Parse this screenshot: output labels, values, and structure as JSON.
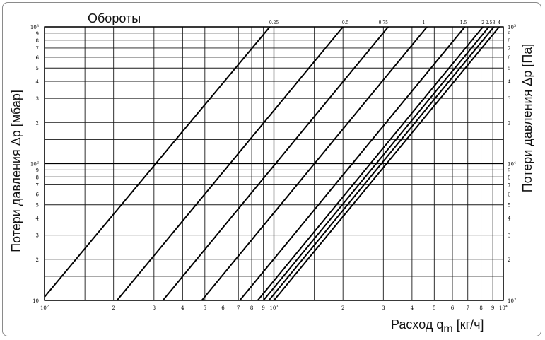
{
  "chart_data": {
    "type": "line",
    "scale": "log-log",
    "title": "Обороты",
    "xlabel_main": "Расход q",
    "xlabel_sub": "m",
    "xlabel_unit": " [кг/ч]",
    "ylabel_left": "Потери давления Δp [мбар]",
    "ylabel_right": "Потери давления Δp [Па]",
    "xlim": [
      100,
      10000
    ],
    "ylim": [
      10,
      1000
    ],
    "grid": true,
    "x_tick_labels": [
      {
        "v": 100,
        "t": "10",
        "sup": "2"
      },
      {
        "v": 200,
        "t": "2"
      },
      {
        "v": 300,
        "t": "3"
      },
      {
        "v": 400,
        "t": "4"
      },
      {
        "v": 500,
        "t": "5"
      },
      {
        "v": 600,
        "t": "6"
      },
      {
        "v": 700,
        "t": "7"
      },
      {
        "v": 800,
        "t": "8"
      },
      {
        "v": 900,
        "t": "9"
      },
      {
        "v": 1000,
        "t": "10",
        "sup": "3"
      },
      {
        "v": 2000,
        "t": "2"
      },
      {
        "v": 3000,
        "t": "3"
      },
      {
        "v": 4000,
        "t": "4"
      },
      {
        "v": 5000,
        "t": "5"
      },
      {
        "v": 6000,
        "t": "6"
      },
      {
        "v": 7000,
        "t": "7"
      },
      {
        "v": 8000,
        "t": "8"
      },
      {
        "v": 9000,
        "t": "9"
      },
      {
        "v": 10000,
        "t": "10",
        "sup": "4"
      }
    ],
    "y_left_tick_labels": [
      {
        "v": 10,
        "t": "10"
      },
      {
        "v": 20,
        "t": "2"
      },
      {
        "v": 30,
        "t": "3"
      },
      {
        "v": 40,
        "t": "4"
      },
      {
        "v": 50,
        "t": "5"
      },
      {
        "v": 60,
        "t": "6"
      },
      {
        "v": 70,
        "t": "7"
      },
      {
        "v": 80,
        "t": "8"
      },
      {
        "v": 90,
        "t": "9"
      },
      {
        "v": 100,
        "t": "10",
        "sup": "2"
      },
      {
        "v": 200,
        "t": "2"
      },
      {
        "v": 300,
        "t": "3"
      },
      {
        "v": 400,
        "t": "4"
      },
      {
        "v": 500,
        "t": "5"
      },
      {
        "v": 600,
        "t": "6"
      },
      {
        "v": 700,
        "t": "7"
      },
      {
        "v": 800,
        "t": "8"
      },
      {
        "v": 900,
        "t": "9"
      },
      {
        "v": 1000,
        "t": "10",
        "sup": "3"
      }
    ],
    "y_right_tick_labels": [
      {
        "v": 10,
        "t": "10",
        "sup": "3"
      },
      {
        "v": 20,
        "t": "2"
      },
      {
        "v": 30,
        "t": "3"
      },
      {
        "v": 40,
        "t": "4"
      },
      {
        "v": 50,
        "t": "5"
      },
      {
        "v": 60,
        "t": "6"
      },
      {
        "v": 70,
        "t": "7"
      },
      {
        "v": 80,
        "t": "8"
      },
      {
        "v": 90,
        "t": "9"
      },
      {
        "v": 100,
        "t": "10",
        "sup": "4"
      },
      {
        "v": 200,
        "t": "2"
      },
      {
        "v": 300,
        "t": "3"
      },
      {
        "v": 400,
        "t": "4"
      },
      {
        "v": 500,
        "t": "5"
      },
      {
        "v": 600,
        "t": "6"
      },
      {
        "v": 700,
        "t": "7"
      },
      {
        "v": 800,
        "t": "8"
      },
      {
        "v": 900,
        "t": "9"
      },
      {
        "v": 1000,
        "t": "10",
        "sup": "5"
      }
    ],
    "series": [
      {
        "name": "0.25",
        "points": [
          [
            100,
            10.6
          ],
          [
            960,
            1000
          ]
        ]
      },
      {
        "name": "0.5",
        "points": [
          [
            207,
            10
          ],
          [
            2000,
            1000
          ]
        ]
      },
      {
        "name": "0.75",
        "points": [
          [
            328,
            10
          ],
          [
            3150,
            1000
          ]
        ]
      },
      {
        "name": "1",
        "points": [
          [
            485,
            10
          ],
          [
            4650,
            1000
          ]
        ]
      },
      {
        "name": "1.5",
        "points": [
          [
            710,
            10
          ],
          [
            6800,
            1000
          ]
        ]
      },
      {
        "name": "2",
        "points": [
          [
            850,
            10
          ],
          [
            8150,
            1000
          ]
        ]
      },
      {
        "name": "2.5",
        "points": [
          [
            900,
            10
          ],
          [
            8650,
            1000
          ]
        ]
      },
      {
        "name": "3",
        "points": [
          [
            950,
            10
          ],
          [
            9100,
            1000
          ]
        ]
      },
      {
        "name": "4",
        "points": [
          [
            1000,
            10
          ],
          [
            9600,
            1000
          ]
        ]
      }
    ],
    "top_labels": [
      {
        "t": "0.25",
        "x": 1000
      },
      {
        "t": "0.5",
        "x": 2050
      },
      {
        "t": "0.75",
        "x": 3000
      },
      {
        "t": "1",
        "x": 4500
      },
      {
        "t": "1.5",
        "x": 6700
      },
      {
        "t": "2",
        "x": 8150
      },
      {
        "t": "2.5",
        "x": 8650
      },
      {
        "t": "3",
        "x": 9100
      },
      {
        "t": "4",
        "x": 9600
      }
    ]
  }
}
